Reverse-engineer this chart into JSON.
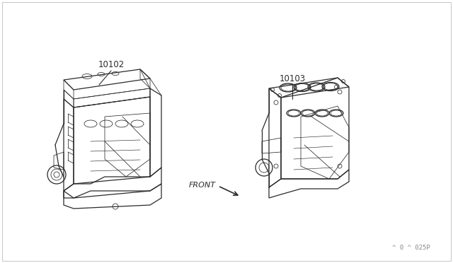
{
  "background_color": "#ffffff",
  "line_color": "#2a2a2a",
  "label_10102": "10102",
  "label_10103": "10103",
  "front_label": "FRONT",
  "page_ref": "^ 0 ^ 025P",
  "fig_width": 6.4,
  "fig_height": 3.72,
  "dpi": 100,
  "border_color": "#cccccc",
  "text_color": "#333333",
  "lw_main": 0.9,
  "lw_detail": 0.55
}
